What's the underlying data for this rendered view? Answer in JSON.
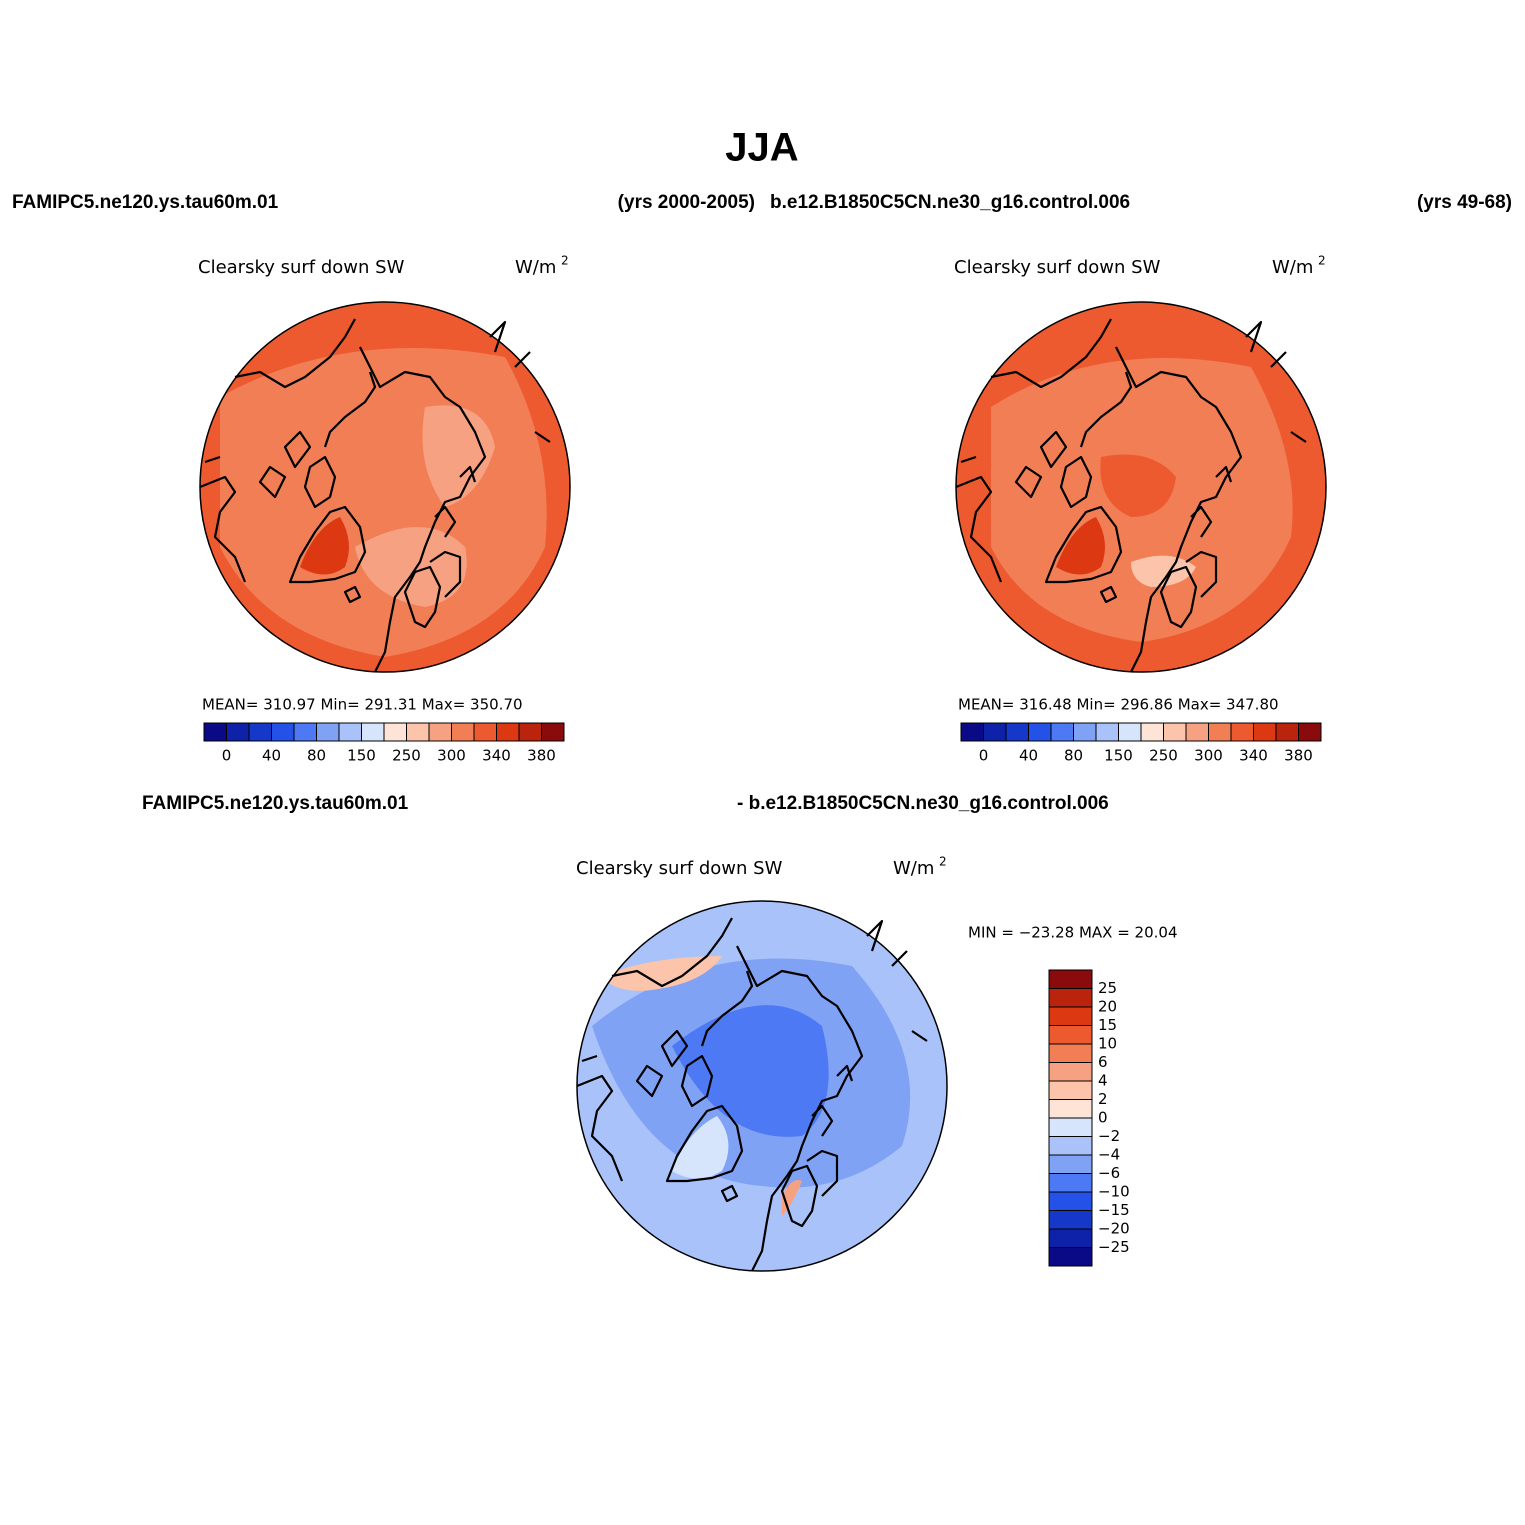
{
  "title": "JJA",
  "top_left_case": "FAMIPC5.ne120.ys.tau60m.01",
  "top_left_years": "(yrs 2000-2005)",
  "top_right_case": "b.e12.B1850C5CN.ne30_g16.control.006",
  "top_right_years": "(yrs 49-68)",
  "bottom_case_a": "FAMIPC5.ne120.ys.tau60m.01",
  "bottom_case_b": "- b.e12.B1850C5CN.ne30_g16.control.006",
  "panels": [
    {
      "variable": "Clearsky surf down SW",
      "units": "W/m",
      "units_exponent": "2",
      "stats": "MEAN= 310.97   Min= 291.31   Max= 350.70",
      "colorbar_labels": [
        "0",
        "40",
        "80",
        "150",
        "250",
        "300",
        "340",
        "380"
      ]
    },
    {
      "variable": "Clearsky surf down SW",
      "units": "W/m",
      "units_exponent": "2",
      "stats": "MEAN= 316.48   Min= 296.86   Max= 347.80",
      "colorbar_labels": [
        "0",
        "40",
        "80",
        "150",
        "250",
        "300",
        "340",
        "380"
      ]
    },
    {
      "variable": "Clearsky surf down SW",
      "units": "W/m",
      "units_exponent": "2",
      "stats": "MIN = −23.28 MAX =  20.04",
      "colorbar_labels": [
        "25",
        "20",
        "15",
        "10",
        "6",
        "4",
        "2",
        "0",
        "−2",
        "−4",
        "−6",
        "−10",
        "−15",
        "−20",
        "−25"
      ]
    }
  ],
  "colorbar_colors": [
    "#0a0a86",
    "#0d22a8",
    "#1638c8",
    "#2452e8",
    "#4d7af4",
    "#80a2f5",
    "#a9c3fa",
    "#d6e5fb",
    "#fde4d7",
    "#fbc4ab",
    "#f6a282",
    "#f27e55",
    "#ee5a2f",
    "#dc3913",
    "#ba240d",
    "#8a0b0b"
  ]
}
